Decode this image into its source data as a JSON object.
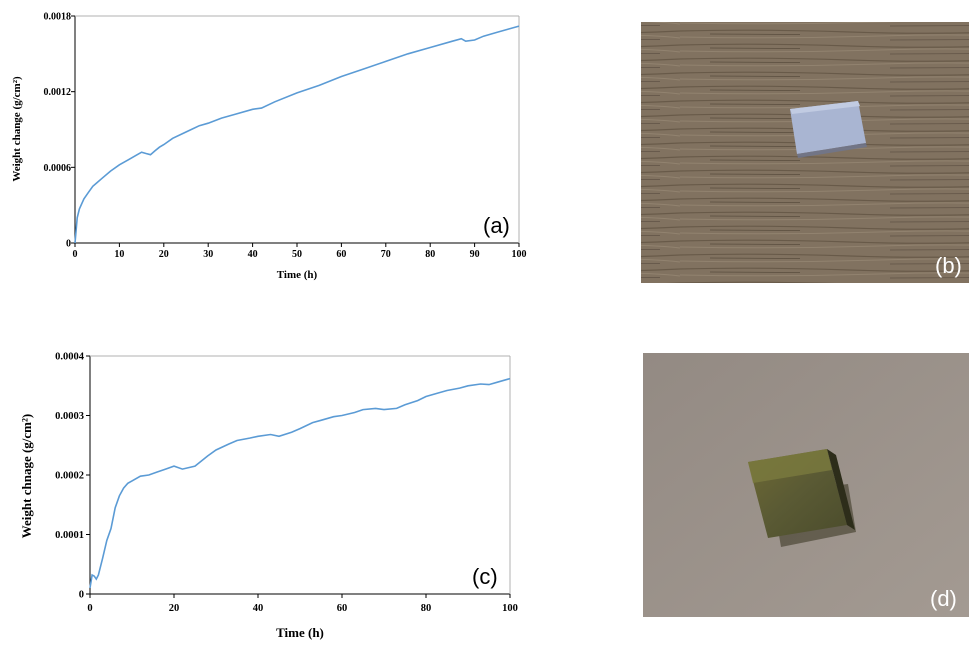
{
  "colors": {
    "line": "#5b9bd5",
    "axis": "#000000"
  },
  "chart_data": [
    {
      "type": "line",
      "panel_label": "(a)",
      "xlabel": "Time (h)",
      "ylabel": "Weight change (g/cm²)",
      "xlim": [
        0,
        100
      ],
      "ylim": [
        0,
        0.0018
      ],
      "x_ticks": [
        "0",
        "10",
        "20",
        "30",
        "40",
        "50",
        "60",
        "70",
        "80",
        "90",
        "100"
      ],
      "y_ticks": [
        "0",
        "0.0006",
        "0.0012",
        "0.0018"
      ],
      "grid": false,
      "series": [
        {
          "x": [
            0,
            0.5,
            1,
            2,
            3,
            4,
            5,
            6,
            8,
            10,
            12,
            14,
            15,
            16,
            17,
            18,
            19,
            20,
            22,
            25,
            28,
            30,
            33,
            36,
            40,
            42,
            45,
            50,
            55,
            60,
            65,
            70,
            75,
            80,
            85,
            87,
            88,
            90,
            92,
            95,
            98,
            100
          ],
          "y": [
            0,
            0.0002,
            0.00027,
            0.00035,
            0.0004,
            0.00045,
            0.00048,
            0.00051,
            0.00057,
            0.00062,
            0.00066,
            0.0007,
            0.00072,
            0.00071,
            0.0007,
            0.00073,
            0.00076,
            0.00078,
            0.00083,
            0.00088,
            0.00093,
            0.00095,
            0.00099,
            0.00102,
            0.00106,
            0.00107,
            0.00112,
            0.00119,
            0.00125,
            0.00132,
            0.00138,
            0.00144,
            0.0015,
            0.00155,
            0.0016,
            0.00162,
            0.0016,
            0.00161,
            0.00164,
            0.00167,
            0.0017,
            0.00172
          ]
        }
      ]
    },
    {
      "type": "line",
      "panel_label": "(c)",
      "xlabel": "Time (h)",
      "ylabel": "Weight chnage (g/cm²)",
      "xlim": [
        0,
        100
      ],
      "ylim": [
        0,
        0.0004
      ],
      "x_ticks": [
        "0",
        "20",
        "40",
        "60",
        "80",
        "100"
      ],
      "y_ticks": [
        "0",
        "0.0001",
        "0.0002",
        "0.0003",
        "0.0004"
      ],
      "grid": false,
      "series": [
        {
          "x": [
            0,
            0.5,
            1,
            1.5,
            2,
            3,
            4,
            5,
            6,
            7,
            8,
            9,
            10,
            12,
            14,
            16,
            18,
            20,
            22,
            25,
            28,
            30,
            33,
            35,
            38,
            40,
            43,
            45,
            48,
            50,
            53,
            55,
            58,
            60,
            63,
            65,
            68,
            70,
            73,
            75,
            78,
            80,
            83,
            85,
            88,
            90,
            93,
            95,
            97,
            100
          ],
          "y": [
            1e-05,
            3.2e-05,
            3e-05,
            2.5e-05,
            3.2e-05,
            6e-05,
            9e-05,
            0.00011,
            0.000145,
            0.000165,
            0.000178,
            0.000186,
            0.00019,
            0.000198,
            0.0002,
            0.000205,
            0.00021,
            0.000215,
            0.00021,
            0.000215,
            0.000232,
            0.000242,
            0.000252,
            0.000258,
            0.000262,
            0.000265,
            0.000268,
            0.000265,
            0.000272,
            0.000278,
            0.000288,
            0.000292,
            0.000298,
            0.0003,
            0.000305,
            0.00031,
            0.000312,
            0.00031,
            0.000312,
            0.000318,
            0.000325,
            0.000332,
            0.000338,
            0.000342,
            0.000346,
            0.00035,
            0.000353,
            0.000352,
            0.000356,
            0.000362
          ]
        }
      ]
    }
  ],
  "photos": [
    {
      "panel_label": "(b)"
    },
    {
      "panel_label": "(d)"
    }
  ]
}
